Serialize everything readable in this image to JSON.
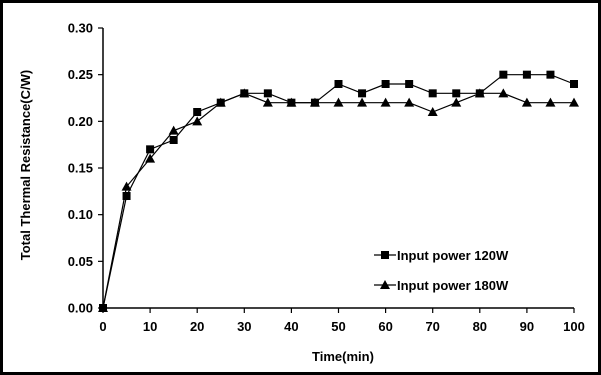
{
  "chart_data": {
    "type": "line",
    "xlabel": "Time(min)",
    "ylabel": "Total Thermal Resistance(C/W)",
    "xlim": [
      0,
      100
    ],
    "ylim": [
      0,
      0.3
    ],
    "x_ticks": [
      "0",
      "10",
      "20",
      "30",
      "40",
      "50",
      "60",
      "70",
      "80",
      "90",
      "100"
    ],
    "y_ticks": [
      "0.00",
      "0.05",
      "0.10",
      "0.15",
      "0.20",
      "0.25",
      "0.30"
    ],
    "grid": false,
    "legend_position": "bottom-right",
    "series": [
      {
        "name": "Input power 120W",
        "marker": "square",
        "color": "#000000",
        "x": [
          0,
          5,
          10,
          15,
          20,
          25,
          30,
          35,
          40,
          45,
          50,
          55,
          60,
          65,
          70,
          75,
          80,
          85,
          90,
          95,
          100
        ],
        "y": [
          0.0,
          0.12,
          0.17,
          0.18,
          0.21,
          0.22,
          0.23,
          0.23,
          0.22,
          0.22,
          0.24,
          0.23,
          0.24,
          0.24,
          0.23,
          0.23,
          0.23,
          0.25,
          0.25,
          0.25,
          0.24
        ]
      },
      {
        "name": "Input power 180W",
        "marker": "triangle",
        "color": "#000000",
        "x": [
          0,
          5,
          10,
          15,
          20,
          25,
          30,
          35,
          40,
          45,
          50,
          55,
          60,
          65,
          70,
          75,
          80,
          85,
          90,
          95,
          100
        ],
        "y": [
          0.0,
          0.13,
          0.16,
          0.19,
          0.2,
          0.22,
          0.23,
          0.22,
          0.22,
          0.22,
          0.22,
          0.22,
          0.22,
          0.22,
          0.21,
          0.22,
          0.23,
          0.23,
          0.22,
          0.22,
          0.22
        ]
      }
    ]
  }
}
